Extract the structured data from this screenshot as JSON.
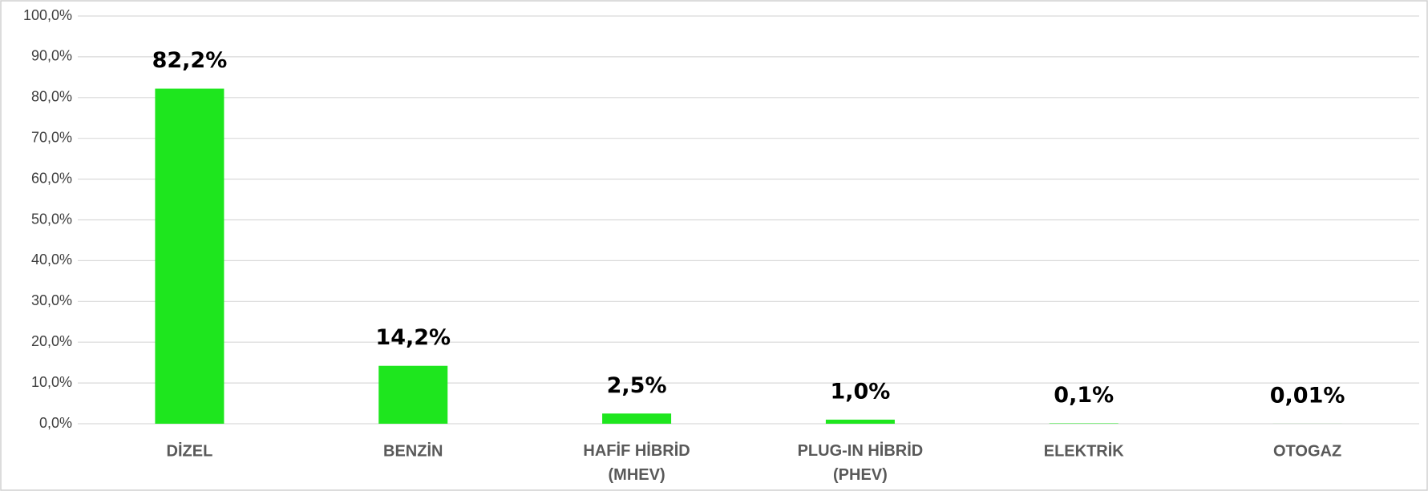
{
  "chart_data": {
    "type": "bar",
    "categories": [
      "DİZEL",
      "BENZİN",
      "HAFİF HİBRİD (MHEV)",
      "PLUG-IN HİBRİD (PHEV)",
      "ELEKTRİK",
      "OTOGAZ"
    ],
    "values": [
      82.2,
      14.2,
      2.5,
      1.0,
      0.1,
      0.01
    ],
    "value_labels": [
      "82,2%",
      "14,2%",
      "2,5%",
      "1,0%",
      "0,1%",
      "0,01%"
    ],
    "color": "#1ee61e",
    "ylim": [
      0,
      100
    ],
    "yticks": [
      {
        "value": 0,
        "label": "0,0%"
      },
      {
        "value": 10,
        "label": "10,0%"
      },
      {
        "value": 20,
        "label": "20,0%"
      },
      {
        "value": 30,
        "label": "30,0%"
      },
      {
        "value": 40,
        "label": "40,0%"
      },
      {
        "value": 50,
        "label": "50,0%"
      },
      {
        "value": 60,
        "label": "60,0%"
      },
      {
        "value": 70,
        "label": "70,0%"
      },
      {
        "value": 80,
        "label": "80,0%"
      },
      {
        "value": 90,
        "label": "90,0%"
      },
      {
        "value": 100,
        "label": "100,0%"
      }
    ],
    "grid": true
  }
}
